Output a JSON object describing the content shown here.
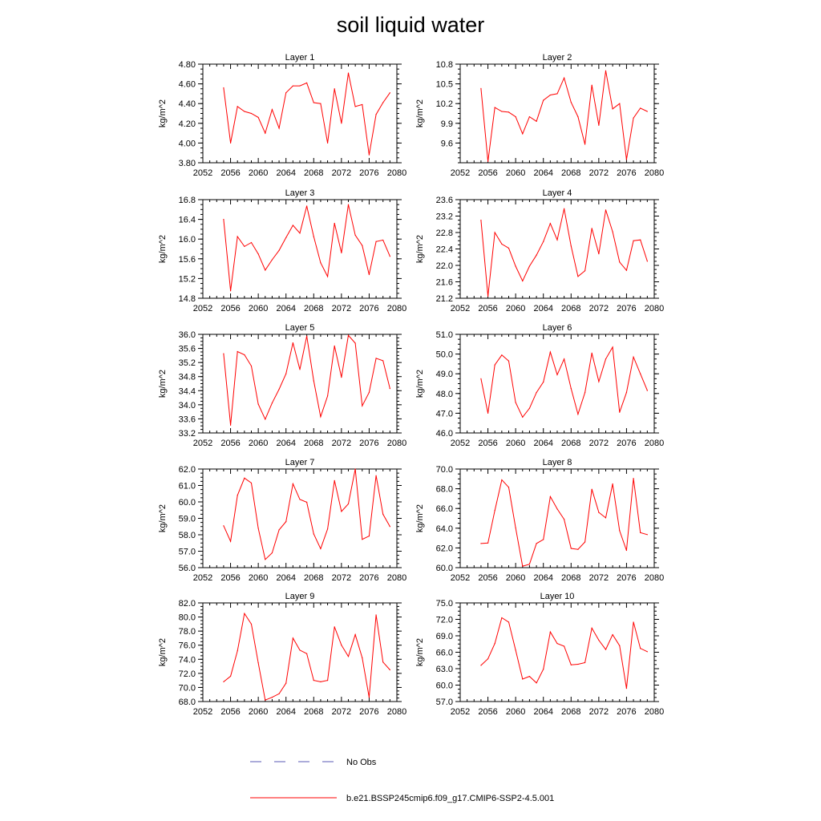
{
  "title": "soil liquid water",
  "colors": {
    "series": "#ff0000",
    "obs": "#5a5ab4",
    "axis": "#000000",
    "background": "#ffffff"
  },
  "legend": [
    {
      "label": "No Obs",
      "style": "dashed",
      "color": "#5a5ab4"
    },
    {
      "label": "b.e21.BSSP245cmip6.f09_g17.CMIP6-SSP2-4.5.001",
      "style": "solid",
      "color": "#ff0000"
    }
  ],
  "chart_data": [
    {
      "type": "line",
      "title": "Layer 1",
      "ylabel": "kg/m^2",
      "xlim": [
        2052,
        2080
      ],
      "xticks": [
        2052,
        2056,
        2060,
        2064,
        2068,
        2072,
        2076,
        2080
      ],
      "ylim": [
        3.8,
        4.8
      ],
      "yticks": [
        "3.80",
        "4.00",
        "4.20",
        "4.40",
        "4.60",
        "4.80"
      ],
      "ytick_values": [
        3.8,
        4.0,
        4.2,
        4.4,
        4.6,
        4.8
      ],
      "x": [
        2055,
        2056,
        2057,
        2058,
        2059,
        2060,
        2061,
        2062,
        2063,
        2064,
        2065,
        2066,
        2067,
        2068,
        2069,
        2070,
        2071,
        2072,
        2073,
        2074,
        2075,
        2076,
        2077,
        2078,
        2079
      ],
      "series": [
        {
          "name": "b.e21.BSSP245cmip6.f09_g17.CMIP6-SSP2-4.5.001",
          "values": [
            4.56,
            4.0,
            4.37,
            4.32,
            4.3,
            4.26,
            4.1,
            4.34,
            4.15,
            4.51,
            4.58,
            4.58,
            4.61,
            4.41,
            4.4,
            4.0,
            4.55,
            4.2,
            4.71,
            4.37,
            4.39,
            3.88,
            4.29,
            4.41,
            4.51
          ]
        }
      ]
    },
    {
      "type": "line",
      "title": "Layer 2",
      "ylabel": "kg/m^2",
      "xlim": [
        2052,
        2080
      ],
      "xticks": [
        2052,
        2056,
        2060,
        2064,
        2068,
        2072,
        2076,
        2080
      ],
      "ylim": [
        9.3,
        10.8
      ],
      "yticks": [
        "9.6",
        "9.9",
        "10.2",
        "10.5",
        "10.8"
      ],
      "ytick_values": [
        9.6,
        9.9,
        10.2,
        10.5,
        10.8
      ],
      "x": [
        2055,
        2056,
        2057,
        2058,
        2059,
        2060,
        2061,
        2062,
        2063,
        2064,
        2065,
        2066,
        2067,
        2068,
        2069,
        2070,
        2071,
        2072,
        2073,
        2074,
        2075,
        2076,
        2077,
        2078,
        2079
      ],
      "series": [
        {
          "name": "b.e21.BSSP245cmip6.f09_g17.CMIP6-SSP2-4.5.001",
          "values": [
            10.43,
            9.32,
            10.14,
            10.08,
            10.07,
            10.0,
            9.74,
            10.0,
            9.93,
            10.25,
            10.33,
            10.35,
            10.59,
            10.22,
            10.0,
            9.58,
            10.48,
            9.87,
            10.7,
            10.12,
            10.2,
            9.35,
            9.98,
            10.13,
            10.08
          ]
        }
      ]
    },
    {
      "type": "line",
      "title": "Layer 3",
      "ylabel": "kg/m^2",
      "xlim": [
        2052,
        2080
      ],
      "xticks": [
        2052,
        2056,
        2060,
        2064,
        2068,
        2072,
        2076,
        2080
      ],
      "ylim": [
        14.8,
        16.8
      ],
      "yticks": [
        "14.8",
        "15.2",
        "15.6",
        "16.0",
        "16.4",
        "16.8"
      ],
      "ytick_values": [
        14.8,
        15.2,
        15.6,
        16.0,
        16.4,
        16.8
      ],
      "x": [
        2055,
        2056,
        2057,
        2058,
        2059,
        2060,
        2061,
        2062,
        2063,
        2064,
        2065,
        2066,
        2067,
        2068,
        2069,
        2070,
        2071,
        2072,
        2073,
        2074,
        2075,
        2076,
        2077,
        2078,
        2079
      ],
      "series": [
        {
          "name": "b.e21.BSSP245cmip6.f09_g17.CMIP6-SSP2-4.5.001",
          "values": [
            16.4,
            14.95,
            16.05,
            15.85,
            15.93,
            15.7,
            15.37,
            15.58,
            15.77,
            16.03,
            16.28,
            16.12,
            16.67,
            16.05,
            15.52,
            15.24,
            16.32,
            15.72,
            16.7,
            16.08,
            15.87,
            15.28,
            15.95,
            15.98,
            15.65
          ]
        }
      ]
    },
    {
      "type": "line",
      "title": "Layer 4",
      "ylabel": "kg/m^2",
      "xlim": [
        2052,
        2080
      ],
      "xticks": [
        2052,
        2056,
        2060,
        2064,
        2068,
        2072,
        2076,
        2080
      ],
      "ylim": [
        21.2,
        23.6
      ],
      "yticks": [
        "21.2",
        "21.6",
        "22.0",
        "22.4",
        "22.8",
        "23.2",
        "23.6"
      ],
      "ytick_values": [
        21.2,
        21.6,
        22.0,
        22.4,
        22.8,
        23.2,
        23.6
      ],
      "x": [
        2055,
        2056,
        2057,
        2058,
        2059,
        2060,
        2061,
        2062,
        2063,
        2064,
        2065,
        2066,
        2067,
        2068,
        2069,
        2070,
        2071,
        2072,
        2073,
        2074,
        2075,
        2076,
        2077,
        2078,
        2079
      ],
      "series": [
        {
          "name": "b.e21.BSSP245cmip6.f09_g17.CMIP6-SSP2-4.5.001",
          "values": [
            23.1,
            21.25,
            22.8,
            22.52,
            22.42,
            21.98,
            21.62,
            21.98,
            22.25,
            22.58,
            23.02,
            22.62,
            23.38,
            22.47,
            21.73,
            21.87,
            22.9,
            22.28,
            23.35,
            22.82,
            22.08,
            21.88,
            22.6,
            22.62,
            22.1
          ]
        }
      ]
    },
    {
      "type": "line",
      "title": "Layer 5",
      "ylabel": "kg/m^2",
      "xlim": [
        2052,
        2080
      ],
      "xticks": [
        2052,
        2056,
        2060,
        2064,
        2068,
        2072,
        2076,
        2080
      ],
      "ylim": [
        33.2,
        36.0
      ],
      "yticks": [
        "33.2",
        "33.6",
        "34.0",
        "34.4",
        "34.8",
        "35.2",
        "35.6",
        "36.0"
      ],
      "ytick_values": [
        33.2,
        33.6,
        34.0,
        34.4,
        34.8,
        35.2,
        35.6,
        36.0
      ],
      "x": [
        2055,
        2056,
        2057,
        2058,
        2059,
        2060,
        2061,
        2062,
        2063,
        2064,
        2065,
        2066,
        2067,
        2068,
        2069,
        2070,
        2071,
        2072,
        2073,
        2074,
        2075,
        2076,
        2077,
        2078,
        2079
      ],
      "series": [
        {
          "name": "b.e21.BSSP245cmip6.f09_g17.CMIP6-SSP2-4.5.001",
          "values": [
            35.45,
            33.42,
            35.51,
            35.42,
            35.1,
            34.02,
            33.59,
            34.05,
            34.44,
            34.88,
            35.76,
            35.0,
            35.95,
            34.68,
            33.66,
            34.25,
            35.67,
            34.78,
            35.97,
            35.75,
            33.97,
            34.35,
            35.32,
            35.25,
            34.46
          ]
        }
      ]
    },
    {
      "type": "line",
      "title": "Layer 6",
      "ylabel": "kg/m^2",
      "xlim": [
        2052,
        2080
      ],
      "xticks": [
        2052,
        2056,
        2060,
        2064,
        2068,
        2072,
        2076,
        2080
      ],
      "ylim": [
        46.0,
        51.0
      ],
      "yticks": [
        "46.0",
        "47.0",
        "48.0",
        "49.0",
        "50.0",
        "51.0"
      ],
      "ytick_values": [
        46.0,
        47.0,
        48.0,
        49.0,
        50.0,
        51.0
      ],
      "x": [
        2055,
        2056,
        2057,
        2058,
        2059,
        2060,
        2061,
        2062,
        2063,
        2064,
        2065,
        2066,
        2067,
        2068,
        2069,
        2070,
        2071,
        2072,
        2073,
        2074,
        2075,
        2076,
        2077,
        2078,
        2079
      ],
      "series": [
        {
          "name": "b.e21.BSSP245cmip6.f09_g17.CMIP6-SSP2-4.5.001",
          "values": [
            48.75,
            47.0,
            49.45,
            49.95,
            49.65,
            47.55,
            46.8,
            47.25,
            48.05,
            48.58,
            50.1,
            48.95,
            49.75,
            48.25,
            46.95,
            48.05,
            50.05,
            48.6,
            49.75,
            50.35,
            47.05,
            48.05,
            49.85,
            49.0,
            48.15
          ]
        }
      ]
    },
    {
      "type": "line",
      "title": "Layer 7",
      "ylabel": "kg/m^2",
      "xlim": [
        2052,
        2080
      ],
      "xticks": [
        2052,
        2056,
        2060,
        2064,
        2068,
        2072,
        2076,
        2080
      ],
      "ylim": [
        56.0,
        62.0
      ],
      "yticks": [
        "56.0",
        "57.0",
        "58.0",
        "59.0",
        "60.0",
        "61.0",
        "62.0"
      ],
      "ytick_values": [
        56.0,
        57.0,
        58.0,
        59.0,
        60.0,
        61.0,
        62.0
      ],
      "x": [
        2055,
        2056,
        2057,
        2058,
        2059,
        2060,
        2061,
        2062,
        2063,
        2064,
        2065,
        2066,
        2067,
        2068,
        2069,
        2070,
        2071,
        2072,
        2073,
        2074,
        2075,
        2076,
        2077,
        2078,
        2079
      ],
      "series": [
        {
          "name": "b.e21.BSSP245cmip6.f09_g17.CMIP6-SSP2-4.5.001",
          "values": [
            58.55,
            57.6,
            60.4,
            61.45,
            61.15,
            58.4,
            56.5,
            56.9,
            58.3,
            58.8,
            61.1,
            60.15,
            59.98,
            58.05,
            57.15,
            58.35,
            61.3,
            59.42,
            59.88,
            62.0,
            57.72,
            57.92,
            61.6,
            59.25,
            58.5
          ]
        }
      ]
    },
    {
      "type": "line",
      "title": "Layer 8",
      "ylabel": "kg/m^2",
      "xlim": [
        2052,
        2080
      ],
      "xticks": [
        2052,
        2056,
        2060,
        2064,
        2068,
        2072,
        2076,
        2080
      ],
      "ylim": [
        60.0,
        70.0
      ],
      "yticks": [
        "60.0",
        "62.0",
        "64.0",
        "66.0",
        "68.0",
        "70.0"
      ],
      "ytick_values": [
        60.0,
        62.0,
        64.0,
        66.0,
        68.0,
        70.0
      ],
      "x": [
        2055,
        2056,
        2057,
        2058,
        2059,
        2060,
        2061,
        2062,
        2063,
        2064,
        2065,
        2066,
        2067,
        2068,
        2069,
        2070,
        2071,
        2072,
        2073,
        2074,
        2075,
        2076,
        2077,
        2078,
        2079
      ],
      "series": [
        {
          "name": "b.e21.BSSP245cmip6.f09_g17.CMIP6-SSP2-4.5.001",
          "values": [
            62.45,
            62.5,
            65.8,
            68.9,
            68.15,
            64.05,
            60.15,
            60.35,
            62.45,
            62.85,
            67.2,
            65.95,
            64.9,
            61.95,
            61.85,
            62.6,
            67.95,
            65.6,
            65.05,
            68.5,
            63.75,
            61.75,
            69.05,
            63.55,
            63.35
          ]
        }
      ]
    },
    {
      "type": "line",
      "title": "Layer 9",
      "ylabel": "kg/m^2",
      "xlim": [
        2052,
        2080
      ],
      "xticks": [
        2052,
        2056,
        2060,
        2064,
        2068,
        2072,
        2076,
        2080
      ],
      "ylim": [
        68.0,
        82.0
      ],
      "yticks": [
        "68.0",
        "70.0",
        "72.0",
        "74.0",
        "76.0",
        "78.0",
        "80.0",
        "82.0"
      ],
      "ytick_values": [
        68.0,
        70.0,
        72.0,
        74.0,
        76.0,
        78.0,
        80.0,
        82.0
      ],
      "x": [
        2055,
        2056,
        2057,
        2058,
        2059,
        2060,
        2061,
        2062,
        2063,
        2064,
        2065,
        2066,
        2067,
        2068,
        2069,
        2070,
        2071,
        2072,
        2073,
        2074,
        2075,
        2076,
        2077,
        2078,
        2079
      ],
      "series": [
        {
          "name": "b.e21.BSSP245cmip6.f09_g17.CMIP6-SSP2-4.5.001",
          "values": [
            70.8,
            71.6,
            75.2,
            80.5,
            79.0,
            73.5,
            68.2,
            68.6,
            69.1,
            70.6,
            77.0,
            75.3,
            74.8,
            71.0,
            70.8,
            71.0,
            78.6,
            76.0,
            74.4,
            77.5,
            74.2,
            68.6,
            80.3,
            73.6,
            72.5
          ]
        }
      ]
    },
    {
      "type": "line",
      "title": "Layer 10",
      "ylabel": "kg/m^2",
      "xlim": [
        2052,
        2080
      ],
      "xticks": [
        2052,
        2056,
        2060,
        2064,
        2068,
        2072,
        2076,
        2080
      ],
      "ylim": [
        57.0,
        75.0
      ],
      "yticks": [
        "57.0",
        "60.0",
        "63.0",
        "66.0",
        "69.0",
        "72.0",
        "75.0"
      ],
      "ytick_values": [
        57.0,
        60.0,
        63.0,
        66.0,
        69.0,
        72.0,
        75.0
      ],
      "x": [
        2055,
        2056,
        2057,
        2058,
        2059,
        2060,
        2061,
        2062,
        2063,
        2064,
        2065,
        2066,
        2067,
        2068,
        2069,
        2070,
        2071,
        2072,
        2073,
        2074,
        2075,
        2076,
        2077,
        2078,
        2079
      ],
      "series": [
        {
          "name": "b.e21.BSSP245cmip6.f09_g17.CMIP6-SSP2-4.5.001",
          "values": [
            63.6,
            64.8,
            67.6,
            72.3,
            71.5,
            66.4,
            61.1,
            61.6,
            60.4,
            62.9,
            69.7,
            67.6,
            67.1,
            63.7,
            63.8,
            64.1,
            70.4,
            68.2,
            66.5,
            69.2,
            67.2,
            59.4,
            71.5,
            66.7,
            66.1
          ]
        }
      ]
    }
  ]
}
